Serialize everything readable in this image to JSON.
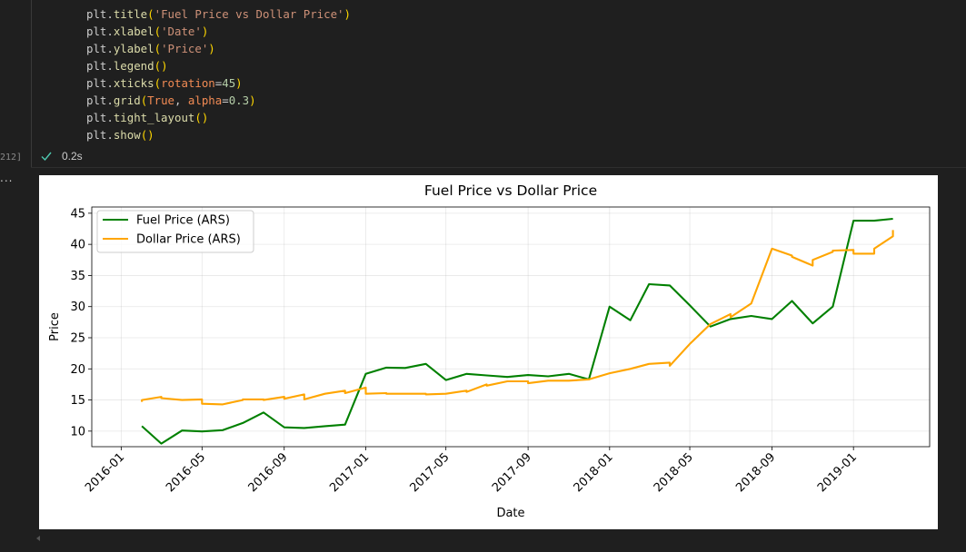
{
  "code_cell": {
    "lines": [
      [
        {
          "t": "plt.",
          "c": ""
        },
        {
          "t": "title",
          "c": "fn"
        },
        {
          "t": "(",
          "c": "par"
        },
        {
          "t": "'Fuel Price vs Dollar Price'",
          "c": "str"
        },
        {
          "t": ")",
          "c": "par"
        }
      ],
      [
        {
          "t": "plt.",
          "c": ""
        },
        {
          "t": "xlabel",
          "c": "fn"
        },
        {
          "t": "(",
          "c": "par"
        },
        {
          "t": "'Date'",
          "c": "str"
        },
        {
          "t": ")",
          "c": "par"
        }
      ],
      [
        {
          "t": "plt.",
          "c": ""
        },
        {
          "t": "ylabel",
          "c": "fn"
        },
        {
          "t": "(",
          "c": "par"
        },
        {
          "t": "'Price'",
          "c": "str"
        },
        {
          "t": ")",
          "c": "par"
        }
      ],
      [
        {
          "t": "plt.",
          "c": ""
        },
        {
          "t": "legend",
          "c": "fn"
        },
        {
          "t": "()",
          "c": "par"
        }
      ],
      [
        {
          "t": "plt.",
          "c": ""
        },
        {
          "t": "xticks",
          "c": "fn"
        },
        {
          "t": "(",
          "c": "par"
        },
        {
          "t": "rotation",
          "c": "kw"
        },
        {
          "t": "=",
          "c": ""
        },
        {
          "t": "45",
          "c": "num"
        },
        {
          "t": ")",
          "c": "par"
        }
      ],
      [
        {
          "t": "plt.",
          "c": ""
        },
        {
          "t": "grid",
          "c": "fn"
        },
        {
          "t": "(",
          "c": "par"
        },
        {
          "t": "True",
          "c": "kw"
        },
        {
          "t": ", ",
          "c": ""
        },
        {
          "t": "alpha",
          "c": "kw"
        },
        {
          "t": "=",
          "c": ""
        },
        {
          "t": "0.3",
          "c": "num"
        },
        {
          "t": ")",
          "c": "par"
        }
      ],
      [
        {
          "t": "plt.",
          "c": ""
        },
        {
          "t": "tight_layout",
          "c": "fn"
        },
        {
          "t": "()",
          "c": "par"
        }
      ],
      [
        {
          "t": "plt.",
          "c": ""
        },
        {
          "t": "show",
          "c": "fn"
        },
        {
          "t": "()",
          "c": "par"
        }
      ]
    ],
    "execution_count": "212]",
    "exec_time": "0.2s",
    "status_icon": "check-icon",
    "status_color": "#4ec9b0"
  },
  "output_ellipsis": "...",
  "chart_data": {
    "type": "line",
    "title": "Fuel Price vs Dollar Price",
    "xlabel": "Date",
    "ylabel": "Price",
    "x_ticks": [
      "2016-01",
      "2016-05",
      "2016-09",
      "2017-01",
      "2017-05",
      "2017-09",
      "2018-01",
      "2018-05",
      "2018-09",
      "2019-01"
    ],
    "y_ticks": [
      10,
      15,
      20,
      25,
      30,
      35,
      40,
      45
    ],
    "xlim": [
      "2015-11-18",
      "2019-04-25"
    ],
    "ylim": [
      7.5,
      46.0
    ],
    "grid": true,
    "legend_position": "top-left",
    "series": [
      {
        "name": "Fuel Price (ARS)",
        "color": "#008000",
        "points": [
          [
            "2016-02-01",
            10.8
          ],
          [
            "2016-03-01",
            8.0
          ],
          [
            "2016-04-01",
            10.1
          ],
          [
            "2016-05-01",
            9.95
          ],
          [
            "2016-06-01",
            10.15
          ],
          [
            "2016-07-01",
            11.3
          ],
          [
            "2016-08-01",
            13.0
          ],
          [
            "2016-09-01",
            10.6
          ],
          [
            "2016-10-01",
            10.5
          ],
          [
            "2016-11-01",
            10.8
          ],
          [
            "2016-12-01",
            11.05
          ],
          [
            "2017-01-01",
            19.2
          ],
          [
            "2017-02-01",
            20.2
          ],
          [
            "2017-03-01",
            20.15
          ],
          [
            "2017-04-01",
            20.8
          ],
          [
            "2017-05-01",
            18.2
          ],
          [
            "2017-06-01",
            19.2
          ],
          [
            "2017-07-01",
            18.95
          ],
          [
            "2017-08-01",
            18.7
          ],
          [
            "2017-09-01",
            19.0
          ],
          [
            "2017-10-01",
            18.8
          ],
          [
            "2017-11-01",
            19.2
          ],
          [
            "2017-12-01",
            18.3
          ],
          [
            "2018-01-01",
            30.0
          ],
          [
            "2018-02-01",
            27.8
          ],
          [
            "2018-03-01",
            33.6
          ],
          [
            "2018-04-01",
            33.4
          ],
          [
            "2018-05-01",
            30.2
          ],
          [
            "2018-06-01",
            26.8
          ],
          [
            "2018-07-01",
            28.0
          ],
          [
            "2018-08-01",
            28.5
          ],
          [
            "2018-09-01",
            28.0
          ],
          [
            "2018-10-01",
            30.9
          ],
          [
            "2018-11-01",
            27.3
          ],
          [
            "2018-12-01",
            30.0
          ],
          [
            "2019-01-01",
            43.8
          ],
          [
            "2019-02-01",
            43.8
          ],
          [
            "2019-03-01",
            44.1
          ]
        ]
      },
      {
        "name": "Dollar Price (ARS)",
        "color": "#ffa500",
        "points": [
          [
            "2016-02-01",
            14.7
          ],
          [
            "2016-02-01",
            15.0
          ],
          [
            "2016-03-01",
            15.5
          ],
          [
            "2016-03-01",
            15.3
          ],
          [
            "2016-04-01",
            15.0
          ],
          [
            "2016-05-01",
            15.1
          ],
          [
            "2016-05-01",
            14.4
          ],
          [
            "2016-06-01",
            14.3
          ],
          [
            "2016-07-01",
            15.0
          ],
          [
            "2016-07-01",
            15.1
          ],
          [
            "2016-08-01",
            15.1
          ],
          [
            "2016-08-01",
            15.0
          ],
          [
            "2016-09-01",
            15.5
          ],
          [
            "2016-09-01",
            15.2
          ],
          [
            "2016-10-01",
            15.9
          ],
          [
            "2016-10-01",
            15.1
          ],
          [
            "2016-11-01",
            16.0
          ],
          [
            "2016-12-01",
            16.5
          ],
          [
            "2016-12-01",
            16.1
          ],
          [
            "2017-01-01",
            17.0
          ],
          [
            "2017-01-01",
            16.0
          ],
          [
            "2017-02-01",
            16.1
          ],
          [
            "2017-02-01",
            16.0
          ],
          [
            "2017-04-01",
            16.0
          ],
          [
            "2017-04-01",
            15.9
          ],
          [
            "2017-05-01",
            16.0
          ],
          [
            "2017-06-01",
            16.5
          ],
          [
            "2017-06-01",
            16.3
          ],
          [
            "2017-07-01",
            17.5
          ],
          [
            "2017-07-01",
            17.3
          ],
          [
            "2017-08-01",
            18.0
          ],
          [
            "2017-09-01",
            18.0
          ],
          [
            "2017-09-01",
            17.7
          ],
          [
            "2017-10-01",
            18.1
          ],
          [
            "2017-11-01",
            18.1
          ],
          [
            "2017-12-01",
            18.3
          ],
          [
            "2018-01-01",
            19.3
          ],
          [
            "2018-02-01",
            20.0
          ],
          [
            "2018-03-01",
            20.8
          ],
          [
            "2018-04-01",
            21.0
          ],
          [
            "2018-04-01",
            20.5
          ],
          [
            "2018-05-01",
            24.0
          ],
          [
            "2018-06-01",
            27.2
          ],
          [
            "2018-07-01",
            28.8
          ],
          [
            "2018-07-01",
            28.3
          ],
          [
            "2018-08-01",
            30.5
          ],
          [
            "2018-09-01",
            39.3
          ],
          [
            "2018-10-01",
            38.2
          ],
          [
            "2018-10-01",
            38.0
          ],
          [
            "2018-11-01",
            36.6
          ],
          [
            "2018-11-01",
            37.5
          ],
          [
            "2018-12-01",
            38.8
          ],
          [
            "2018-12-01",
            39.0
          ],
          [
            "2019-01-01",
            39.1
          ],
          [
            "2019-01-01",
            38.5
          ],
          [
            "2019-02-01",
            38.5
          ],
          [
            "2019-02-01",
            39.3
          ],
          [
            "2019-03-01",
            41.3
          ],
          [
            "2019-03-01",
            42.3
          ]
        ]
      }
    ]
  }
}
